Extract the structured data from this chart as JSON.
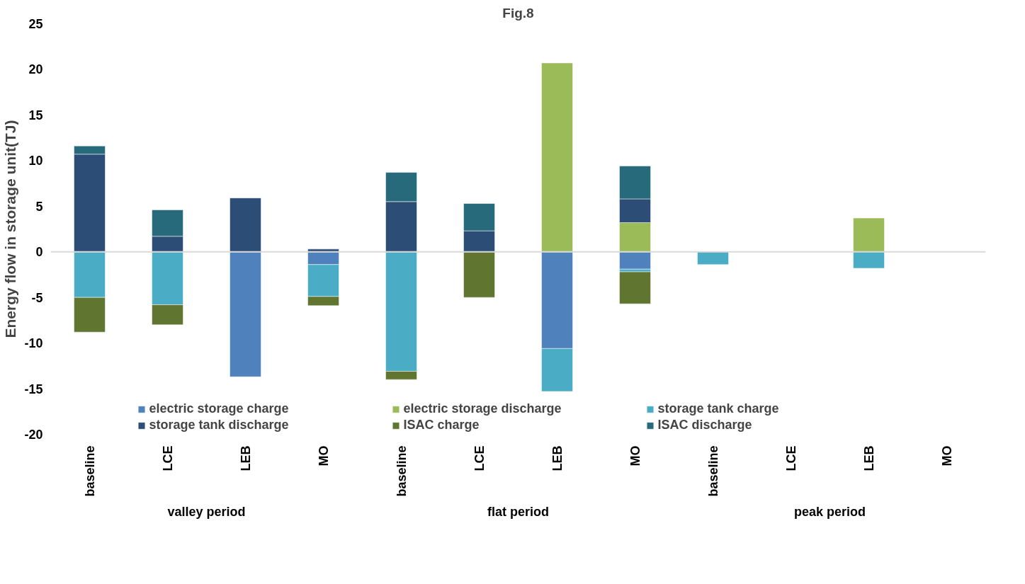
{
  "chart_data": {
    "type": "bar",
    "title": "Fig.8",
    "ylabel": "Energy flow in storage unit(TJ)",
    "categories": [
      "baseline",
      "LCE",
      "LEB",
      "MO",
      "baseline",
      "LCE",
      "LEB",
      "MO",
      "baseline",
      "LCE",
      "LEB",
      "MO"
    ],
    "annotations": [
      "valley period",
      "flat period",
      "peak period"
    ],
    "stacked": true,
    "series": [
      {
        "name": "electric storage charge",
        "color": "#4f81bd",
        "values": [
          null,
          null,
          -13.7,
          -1.4,
          null,
          null,
          -10.6,
          -1.9,
          null,
          null,
          null,
          null
        ]
      },
      {
        "name": "electric storage discharge",
        "color": "#9bbb59",
        "values": [
          null,
          null,
          null,
          null,
          null,
          null,
          20.7,
          3.2,
          null,
          null,
          3.7,
          null
        ]
      },
      {
        "name": "storage tank charge",
        "color": "#4bacc6",
        "values": [
          -5.0,
          -5.8,
          null,
          -3.5,
          -13.1,
          null,
          -4.7,
          -0.3,
          -1.4,
          null,
          -1.8,
          null
        ]
      },
      {
        "name": "storage tank discharge",
        "color": "#2c4d75",
        "values": [
          10.7,
          1.7,
          5.9,
          0.3,
          5.5,
          2.3,
          null,
          2.6,
          null,
          null,
          null,
          null
        ]
      },
      {
        "name": "ISAC charge",
        "color": "#5f7530",
        "values": [
          -3.8,
          -2.2,
          null,
          -1.0,
          -0.9,
          -5.0,
          null,
          -3.5,
          null,
          null,
          null,
          null
        ]
      },
      {
        "name": "ISAC discharge",
        "color": "#276a7c",
        "values": [
          0.9,
          2.9,
          null,
          null,
          3.2,
          3.0,
          null,
          3.6,
          null,
          null,
          null,
          null
        ]
      }
    ],
    "ylim": [
      -20,
      25
    ],
    "yticks": [
      -20,
      -15,
      -10,
      -5,
      0,
      5,
      10,
      15,
      20,
      25
    ],
    "ref_lines": [
      {
        "axis": "y",
        "value": 0,
        "color": "#d9d9d9"
      }
    ],
    "grid": false,
    "legend": "bottom"
  }
}
